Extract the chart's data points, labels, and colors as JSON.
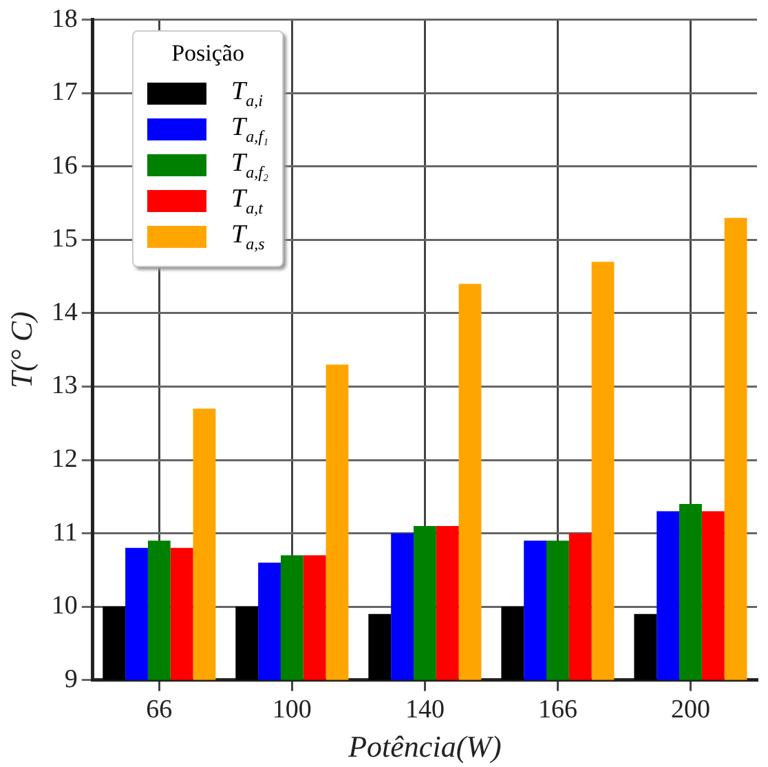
{
  "chart_data": {
    "type": "bar",
    "xlabel": "Potência(W)",
    "ylabel": "T(° C)",
    "legend_title": "Posição",
    "categories": [
      "66",
      "100",
      "140",
      "166",
      "200"
    ],
    "series": [
      {
        "name": "T$_{a,i}$",
        "color": "#000000",
        "values": [
          10.0,
          10.0,
          9.9,
          10.0,
          9.9
        ]
      },
      {
        "name": "T$_{a,f₁}$",
        "color": "#0000ff",
        "values": [
          10.8,
          10.6,
          11.0,
          10.9,
          11.3
        ]
      },
      {
        "name": "T$_{a,f₂}$",
        "color": "#008000",
        "values": [
          10.9,
          10.7,
          11.1,
          10.9,
          11.4
        ]
      },
      {
        "name": "T$_{a,t}$",
        "color": "#ff0000",
        "values": [
          10.8,
          10.7,
          11.1,
          11.0,
          11.3
        ]
      },
      {
        "name": "T$_{a,s}$",
        "color": "#ffa500",
        "values": [
          12.7,
          13.3,
          14.4,
          14.7,
          15.3
        ]
      }
    ],
    "ylim": [
      9,
      18
    ],
    "yticks": [
      9,
      10,
      11,
      12,
      13,
      14,
      15,
      16,
      17,
      18
    ],
    "grid": true,
    "legend": "top left"
  }
}
